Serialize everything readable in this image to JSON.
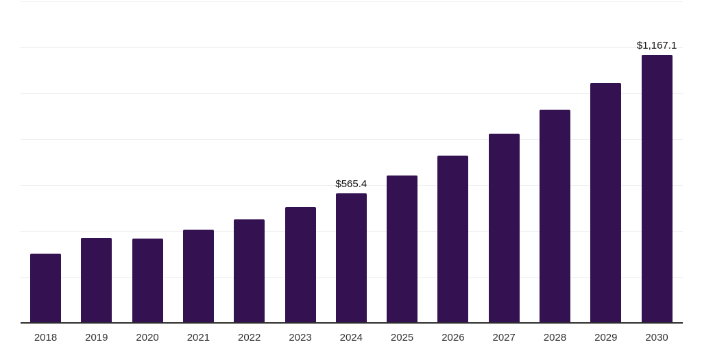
{
  "chart_data": {
    "type": "bar",
    "title": "",
    "xlabel": "",
    "ylabel": "",
    "categories": [
      "2018",
      "2019",
      "2020",
      "2021",
      "2022",
      "2023",
      "2024",
      "2025",
      "2026",
      "2027",
      "2028",
      "2029",
      "2030"
    ],
    "values": [
      302,
      371,
      366,
      406,
      451,
      505,
      565.4,
      643,
      729,
      824,
      929,
      1045,
      1167.1
    ],
    "ylim": [
      0,
      1400
    ],
    "gridline_step": 200,
    "grid": true,
    "legend": false,
    "data_labels": [
      {
        "category": "2024",
        "text": "$565.4"
      },
      {
        "category": "2030",
        "text": "$1,167.1"
      }
    ],
    "colors": {
      "bar": "#341150",
      "gridline": "#f0f0f0",
      "axis": "#2d2d2d",
      "x_label": "#333333",
      "data_label": "#111111",
      "background": "#ffffff"
    }
  }
}
